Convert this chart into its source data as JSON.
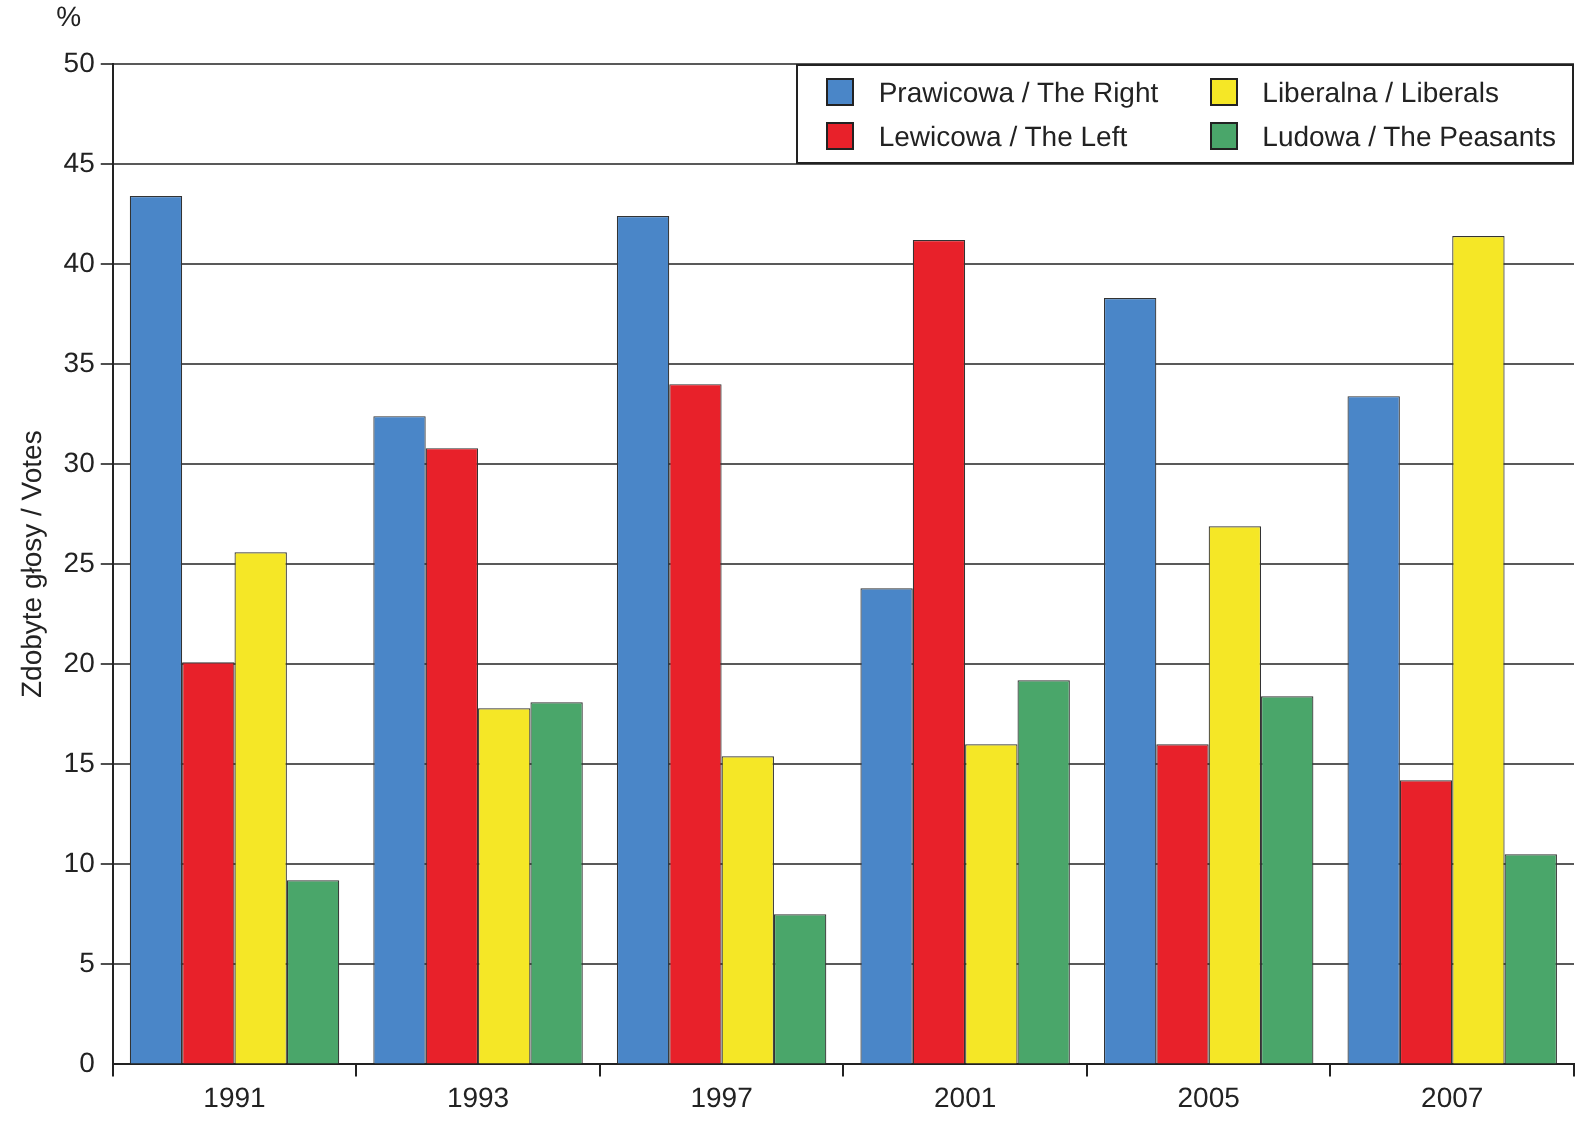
{
  "chart_data": {
    "type": "bar",
    "ylabel": "Zdobyte głosy / Votes",
    "annotations": [
      "%"
    ],
    "categories": [
      "1991",
      "1993",
      "1997",
      "2001",
      "2005",
      "2007"
    ],
    "series": [
      {
        "name": "Prawicowa / The Right",
        "color": "#4a86c8",
        "values": [
          43.4,
          32.4,
          42.4,
          23.8,
          38.3,
          33.4
        ]
      },
      {
        "name": "Lewicowa / The Left",
        "color": "#e8212a",
        "values": [
          20.1,
          30.8,
          34.0,
          41.2,
          16.0,
          14.2
        ]
      },
      {
        "name": "Liberalna / Liberals",
        "color": "#f5e726",
        "values": [
          25.6,
          17.8,
          15.4,
          16.0,
          26.9,
          41.4
        ]
      },
      {
        "name": "Ludowa / The Peasants",
        "color": "#4aa66a",
        "values": [
          9.2,
          18.1,
          7.5,
          19.2,
          18.4,
          10.5
        ]
      }
    ],
    "ylim": [
      0,
      50
    ],
    "yticks": [
      0,
      5,
      10,
      15,
      20,
      25,
      30,
      35,
      40,
      45,
      50
    ],
    "grid": "y",
    "legend": "top right"
  }
}
